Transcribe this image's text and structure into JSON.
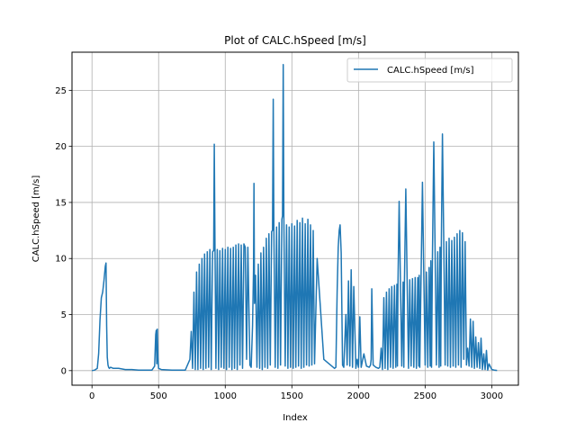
{
  "chart_data": {
    "type": "line",
    "title": "Plot of CALC.hSpeed [m/s]",
    "xlabel": "Index",
    "ylabel": "CALC.hSpeed [m/s]",
    "xlim": [
      -150,
      3200
    ],
    "ylim": [
      -1.3,
      28.4
    ],
    "xticks": [
      0,
      500,
      1000,
      1500,
      2000,
      2500,
      3000
    ],
    "yticks": [
      0,
      5,
      10,
      15,
      20,
      25
    ],
    "grid": true,
    "legend_position": "top-right",
    "line_color": "#1f77b4",
    "series": [
      {
        "name": "CALC.hSpeed [m/s]",
        "x": [
          0,
          20,
          40,
          50,
          60,
          70,
          80,
          90,
          100,
          105,
          110,
          115,
          120,
          125,
          130,
          140,
          160,
          200,
          250,
          300,
          350,
          400,
          450,
          470,
          478,
          482,
          486,
          490,
          495,
          500,
          520,
          600,
          700,
          735,
          745,
          755,
          765,
          775,
          785,
          795,
          805,
          815,
          825,
          835,
          845,
          855,
          865,
          875,
          885,
          895,
          905,
          913,
          918,
          923,
          930,
          940,
          950,
          960,
          970,
          980,
          990,
          1000,
          1010,
          1020,
          1030,
          1040,
          1050,
          1060,
          1070,
          1080,
          1090,
          1100,
          1110,
          1120,
          1130,
          1140,
          1150,
          1160,
          1170,
          1185,
          1195,
          1205,
          1212,
          1216,
          1220,
          1228,
          1238,
          1248,
          1258,
          1268,
          1278,
          1288,
          1298,
          1308,
          1318,
          1328,
          1338,
          1348,
          1355,
          1360,
          1365,
          1375,
          1385,
          1395,
          1405,
          1415,
          1425,
          1430,
          1435,
          1440,
          1450,
          1460,
          1470,
          1480,
          1490,
          1500,
          1510,
          1520,
          1530,
          1540,
          1550,
          1560,
          1570,
          1580,
          1590,
          1600,
          1610,
          1620,
          1630,
          1640,
          1650,
          1660,
          1670,
          1690,
          1740,
          1800,
          1820,
          1830,
          1840,
          1848,
          1855,
          1862,
          1870,
          1880,
          1890,
          1905,
          1915,
          1925,
          1935,
          1945,
          1955,
          1965,
          1980,
          1990,
          2000,
          2010,
          2020,
          2040,
          2060,
          2080,
          2090,
          2095,
          2100,
          2110,
          2130,
          2150,
          2160,
          2170,
          2180,
          2190,
          2200,
          2210,
          2220,
          2230,
          2240,
          2250,
          2260,
          2270,
          2280,
          2288,
          2292,
          2296,
          2305,
          2315,
          2325,
          2335,
          2340,
          2345,
          2355,
          2365,
          2375,
          2385,
          2395,
          2405,
          2415,
          2425,
          2435,
          2445,
          2452,
          2456,
          2460,
          2470,
          2480,
          2490,
          2500,
          2510,
          2520,
          2530,
          2538,
          2543,
          2548,
          2555,
          2565,
          2575,
          2585,
          2595,
          2605,
          2612,
          2617,
          2622,
          2630,
          2640,
          2650,
          2660,
          2670,
          2680,
          2690,
          2700,
          2710,
          2720,
          2730,
          2740,
          2750,
          2760,
          2770,
          2780,
          2790,
          2800,
          2810,
          2820,
          2830,
          2840,
          2850,
          2860,
          2870,
          2880,
          2890,
          2900,
          2910,
          2920,
          2930,
          2940,
          2950,
          2960,
          2970,
          2980,
          3000,
          3020,
          3040
        ],
        "y": [
          0.0,
          0.05,
          0.2,
          1.5,
          4.5,
          6.5,
          7.0,
          8.0,
          9.3,
          9.6,
          4.0,
          1.2,
          0.5,
          0.3,
          0.2,
          0.3,
          0.2,
          0.2,
          0.1,
          0.1,
          0.05,
          0.05,
          0.05,
          0.4,
          3.2,
          3.6,
          0.6,
          3.7,
          1.2,
          0.2,
          0.1,
          0.05,
          0.05,
          1.0,
          3.5,
          0.2,
          7.0,
          0.1,
          8.8,
          0.1,
          9.5,
          0.2,
          10.0,
          0.1,
          10.4,
          0.2,
          10.6,
          0.3,
          10.8,
          0.1,
          10.6,
          10.7,
          20.2,
          10.8,
          0.2,
          10.8,
          0.1,
          10.7,
          0.3,
          10.9,
          0.2,
          10.8,
          0.1,
          11.0,
          0.3,
          10.9,
          0.1,
          11.0,
          0.2,
          11.2,
          0.1,
          11.3,
          0.5,
          11.2,
          0.2,
          11.3,
          11.0,
          1.0,
          11.0,
          0.5,
          0.3,
          4.0,
          9.0,
          16.7,
          6.0,
          8.5,
          0.3,
          9.5,
          0.2,
          10.5,
          0.1,
          11.0,
          0.3,
          11.8,
          0.2,
          12.2,
          0.5,
          12.4,
          12.5,
          24.2,
          12.6,
          0.3,
          12.8,
          0.2,
          13.2,
          0.5,
          13.5,
          13.8,
          27.3,
          13.6,
          0.4,
          13.0,
          0.2,
          12.8,
          0.3,
          13.1,
          0.2,
          12.9,
          0.3,
          13.4,
          0.4,
          13.2,
          0.2,
          13.6,
          0.3,
          13.1,
          0.5,
          13.5,
          0.4,
          13.0,
          0.5,
          12.5,
          0.6,
          10.0,
          1.0,
          0.4,
          0.2,
          0.3,
          7.0,
          11.0,
          12.5,
          13.0,
          10.5,
          0.5,
          0.3,
          5.0,
          0.5,
          8.0,
          0.4,
          9.0,
          0.3,
          7.5,
          0.2,
          1.0,
          0.3,
          4.8,
          0.3,
          1.5,
          0.4,
          0.3,
          0.5,
          1.0,
          7.3,
          0.5,
          0.3,
          0.2,
          0.3,
          2.0,
          0.1,
          6.5,
          0.2,
          7.0,
          0.1,
          7.3,
          0.3,
          7.5,
          0.2,
          7.6,
          0.3,
          7.7,
          0.4,
          7.8,
          15.1,
          7.6,
          0.4,
          7.9,
          0.3,
          8.0,
          16.2,
          7.9,
          0.2,
          8.1,
          0.4,
          8.2,
          0.3,
          8.3,
          0.2,
          8.3,
          0.4,
          8.5,
          0.3,
          8.6,
          16.8,
          8.5,
          0.5,
          8.8,
          0.3,
          9.2,
          0.4,
          9.8,
          0.3,
          10.2,
          20.4,
          10.3,
          0.5,
          10.6,
          0.3,
          11.0,
          0.4,
          11.5,
          21.1,
          11.3,
          0.5,
          11.5,
          0.4,
          11.8,
          0.3,
          11.6,
          0.4,
          11.9,
          0.3,
          12.2,
          0.5,
          12.5,
          0.3,
          12.3,
          1.0,
          11.5,
          0.5,
          2.0,
          0.4,
          4.6,
          0.3,
          4.4,
          0.2,
          3.0,
          0.3,
          2.5,
          0.2,
          2.9,
          0.1,
          1.5,
          0.1,
          1.8,
          0.05,
          0.6,
          0.1,
          0.05,
          0.02
        ]
      }
    ]
  }
}
